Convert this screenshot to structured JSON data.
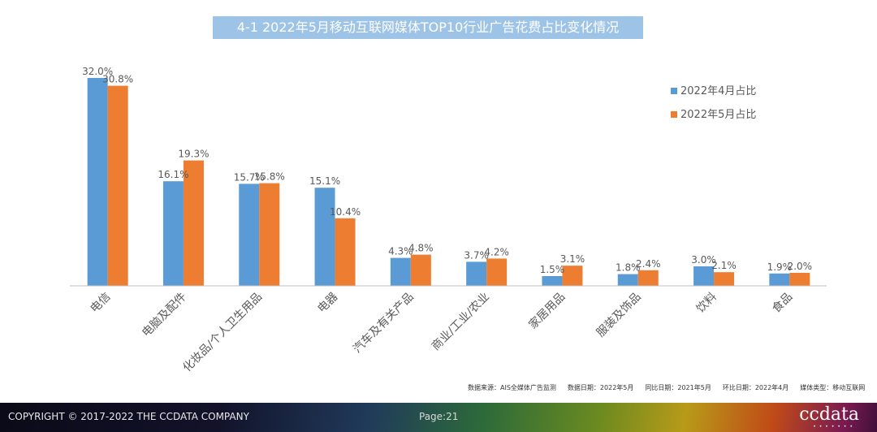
{
  "header": {
    "title": "4-1 2022年5月移动互联网媒体TOP10行业广告花费占比变化情况"
  },
  "chart_data": {
    "type": "bar",
    "categories": [
      "电信",
      "电脑及配件",
      "化妆品/个人卫生用品",
      "电器",
      "汽车及有关产品",
      "商业/工业/农业",
      "家居用品",
      "服装及饰品",
      "饮料",
      "食品"
    ],
    "series": [
      {
        "name": "2022年4月占比",
        "values": [
          32.0,
          16.1,
          15.7,
          15.1,
          4.3,
          3.7,
          1.5,
          1.8,
          3.0,
          1.9
        ],
        "color": "#5b9bd5"
      },
      {
        "name": "2022年5月占比",
        "values": [
          30.8,
          19.3,
          15.8,
          10.4,
          4.8,
          4.2,
          3.1,
          2.4,
          2.1,
          2.0
        ],
        "color": "#ed7d31"
      }
    ],
    "value_suffix": "%",
    "ylim": [
      0,
      32
    ],
    "grid": false,
    "legend_position": "top-right"
  },
  "source_note": {
    "source": "数据来源：AIS全媒体广告监测",
    "data_date": "数据日期：2022年5月",
    "yoy_date": "同比日期：2021年5月",
    "mom_date": "环比日期：2022年4月",
    "media_type": "媒体类型：移动互联网"
  },
  "footer": {
    "copyright": "COPYRIGHT © 2017-2022 THE CCDATA COMPANY",
    "page": "Page:21",
    "logo": "ccdata"
  }
}
